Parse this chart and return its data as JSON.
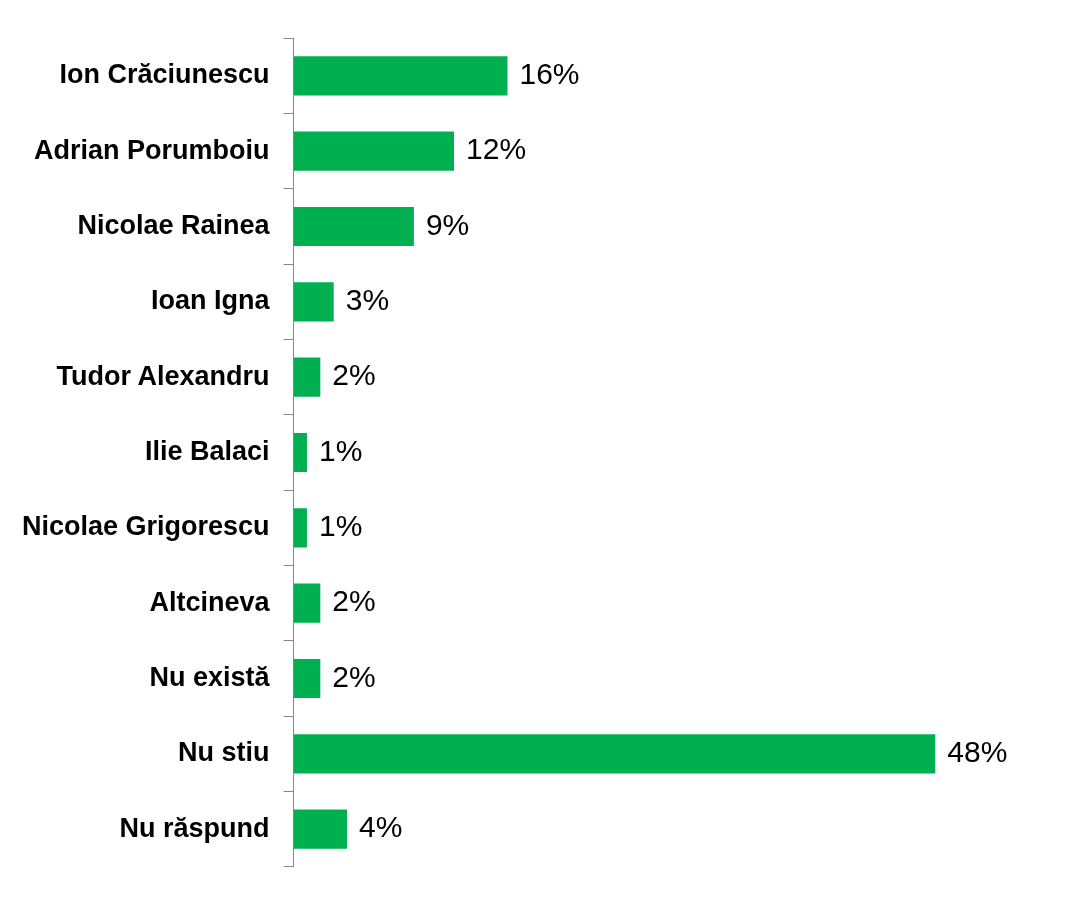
{
  "chart_data": {
    "type": "bar",
    "orientation": "horizontal",
    "categories": [
      "Ion Crăciunescu",
      "Adrian Porumboiu",
      "Nicolae Rainea",
      "Ioan Igna",
      "Tudor Alexandru",
      "Ilie Balaci",
      "Nicolae Grigorescu",
      "Altcineva",
      "Nu există",
      "Nu stiu",
      "Nu răspund"
    ],
    "values": [
      16,
      12,
      9,
      3,
      2,
      1,
      1,
      2,
      2,
      48,
      4
    ],
    "value_labels": [
      "16%",
      "12%",
      "9%",
      "3%",
      "2%",
      "1%",
      "1%",
      "2%",
      "2%",
      "48%",
      "4%"
    ],
    "color": "#00b050",
    "tick_labels": "y"
  }
}
